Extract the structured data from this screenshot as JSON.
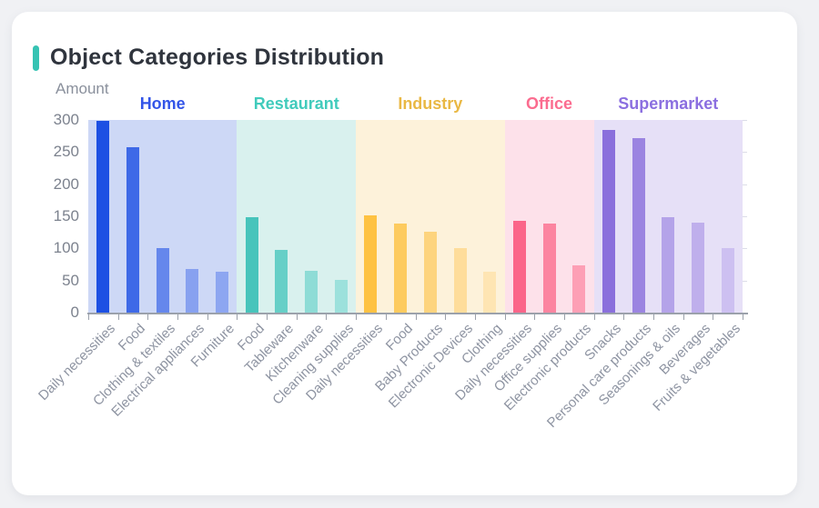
{
  "page": {
    "background_color": "#f0f1f4",
    "card_color": "#ffffff",
    "accent_color": "#36c3b3"
  },
  "chart_data": {
    "type": "bar",
    "title": "Object Categories Distribution",
    "ylabel": "Amount",
    "xlabel": "",
    "ylim": [
      0,
      300
    ],
    "y_ticks": [
      0,
      50,
      100,
      150,
      200,
      250,
      300
    ],
    "grid": false,
    "legend_position": "none",
    "group_headers_position": "top",
    "groups": [
      {
        "name": "Home",
        "label_color": "#3355e8",
        "band_color": "#cdd8f6",
        "bars": [
          {
            "label": "Daily necessities",
            "value": 298,
            "color": "#1d50e3"
          },
          {
            "label": "Food",
            "value": 257,
            "color": "#3e69e7"
          },
          {
            "label": "Clothing & textiles",
            "value": 101,
            "color": "#6587ec"
          },
          {
            "label": "Electrical appliances",
            "value": 68,
            "color": "#87a1f0"
          },
          {
            "label": "Furniture",
            "value": 64,
            "color": "#8da6f1"
          }
        ]
      },
      {
        "name": "Restaurant",
        "label_color": "#41cbbc",
        "band_color": "#d9f1ee",
        "bars": [
          {
            "label": "Food",
            "value": 149,
            "color": "#47c4bb"
          },
          {
            "label": "Tableware",
            "value": 97,
            "color": "#66cfc7"
          },
          {
            "label": "Kitchenware",
            "value": 65,
            "color": "#8edcd6"
          },
          {
            "label": "Cleaning supplies",
            "value": 51,
            "color": "#9ce1dc"
          }
        ]
      },
      {
        "name": "Industry",
        "label_color": "#e9b844",
        "band_color": "#fdf2da",
        "bars": [
          {
            "label": "Daily necessities",
            "value": 151,
            "color": "#fec242"
          },
          {
            "label": "Food",
            "value": 139,
            "color": "#fdcb5f"
          },
          {
            "label": "Baby Products",
            "value": 126,
            "color": "#fdd47e"
          },
          {
            "label": "Electronic Devices",
            "value": 100,
            "color": "#fedd9b"
          },
          {
            "label": "Clothing",
            "value": 63,
            "color": "#fee5b3"
          }
        ]
      },
      {
        "name": "Office",
        "label_color": "#fb6c8f",
        "band_color": "#fde1ea",
        "bars": [
          {
            "label": "Daily necessities",
            "value": 143,
            "color": "#fb6589"
          },
          {
            "label": "Office supplies",
            "value": 138,
            "color": "#fc84a0"
          },
          {
            "label": "Electronic products",
            "value": 74,
            "color": "#fd9fb5"
          }
        ]
      },
      {
        "name": "Supermarket",
        "label_color": "#8b6fe0",
        "band_color": "#e6e0f7",
        "bars": [
          {
            "label": "Snacks",
            "value": 284,
            "color": "#8a6fdc"
          },
          {
            "label": "Personal care products",
            "value": 271,
            "color": "#9b84e1"
          },
          {
            "label": "Seasonings & oils",
            "value": 149,
            "color": "#b4a3e9"
          },
          {
            "label": "Beverages",
            "value": 140,
            "color": "#bfafec"
          },
          {
            "label": "Fruits & vegetables",
            "value": 100,
            "color": "#cdc0f1"
          }
        ]
      }
    ]
  }
}
